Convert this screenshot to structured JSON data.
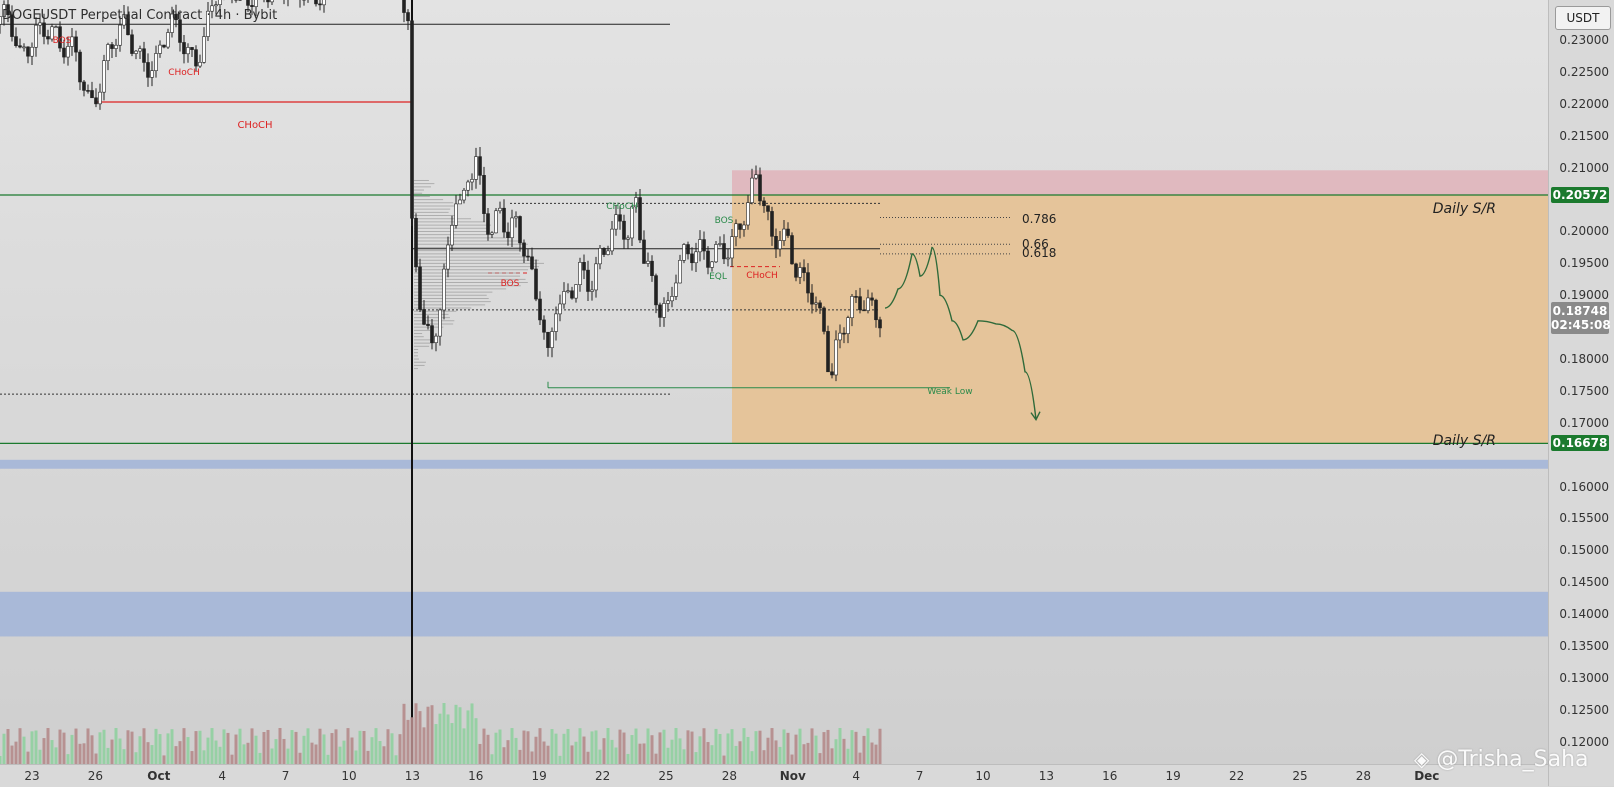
{
  "header": {
    "title": "DOGEUSDT Perpetual Contract · 4h · Bybit",
    "currency": "USDT"
  },
  "price_axis": {
    "ticks": [
      "0.23000",
      "0.22500",
      "0.22000",
      "0.21500",
      "0.21000",
      "0.20000",
      "0.19500",
      "0.19000",
      "0.18000",
      "0.17500",
      "0.17000",
      "0.16000",
      "0.15500",
      "0.15000",
      "0.14500",
      "0.14000",
      "0.13500",
      "0.13000",
      "0.12500",
      "0.12000"
    ],
    "upper_sr_price": "0.20572",
    "lower_sr_price": "0.16678",
    "current_price": "0.18748",
    "countdown": "02:45:08"
  },
  "time_axis": {
    "labels": [
      "23",
      "26",
      "Oct",
      "4",
      "7",
      "10",
      "13",
      "16",
      "19",
      "22",
      "25",
      "28",
      "Nov",
      "4",
      "7",
      "10",
      "13",
      "16",
      "19",
      "22",
      "25",
      "28",
      "Dec"
    ]
  },
  "annotations": {
    "choch": "CHoCH",
    "daily_sr_upper": "Daily S/R",
    "daily_sr_lower": "Daily S/R",
    "fib_786": "0.786",
    "fib_66": "0.66",
    "fib_618": "0.618",
    "weak_low": "Weak Low",
    "eql": "EQL",
    "bos": "BOS",
    "choch_small": "CHoCH",
    "bos_left": "BOS",
    "choch_left": "CHoCH",
    "bos_mid": "BOS",
    "choch_right": "CHoCH"
  },
  "watermark": "@Trisha_Saha",
  "colors": {
    "supply_zone": "#e0b9bf",
    "premium_zone": "#e5c49a",
    "demand_band": "#a9b9d8",
    "sr_line": "#1b7a2e",
    "bull": "#ffffff",
    "bear": "#222222",
    "vol_up": "#8fcf9f",
    "vol_down": "#b48a8a",
    "projection": "#2f6a3a"
  },
  "chart_data": {
    "type": "candlestick",
    "symbol": "DOGEUSDT",
    "timeframe": "4h",
    "y_range": [
      0.1165,
      0.2363
    ],
    "levels": {
      "upper_daily_sr": 0.20572,
      "lower_daily_sr": 0.16678,
      "current": 0.18748,
      "choch": 0.2203,
      "weak_low": 0.1755,
      "equal_highs": 0.2044,
      "mid_line": 0.1973,
      "fib_786": 0.2022,
      "fib_66": 0.198,
      "fib_618": 0.1965
    },
    "zones": [
      {
        "name": "supply",
        "from": 0.2057,
        "to": 0.2096
      },
      {
        "name": "premium",
        "from": 0.16678,
        "to": 0.20572
      },
      {
        "name": "demand_thin",
        "from": 0.1628,
        "to": 0.1642
      },
      {
        "name": "demand",
        "from": 0.1365,
        "to": 0.1435
      }
    ],
    "price_path": [
      [
        0,
        0.2325
      ],
      [
        10,
        0.233
      ],
      [
        20,
        0.228
      ],
      [
        35,
        0.232
      ],
      [
        50,
        0.231
      ],
      [
        60,
        0.228
      ],
      [
        75,
        0.229
      ],
      [
        90,
        0.2205
      ],
      [
        100,
        0.223
      ],
      [
        110,
        0.228
      ],
      [
        125,
        0.232
      ],
      [
        140,
        0.228
      ],
      [
        155,
        0.226
      ],
      [
        170,
        0.232
      ],
      [
        185,
        0.229
      ],
      [
        195,
        0.227
      ],
      [
        205,
        0.232
      ],
      [
        215,
        0.237
      ],
      [
        225,
        0.238
      ],
      [
        240,
        0.236
      ],
      [
        260,
        0.239
      ],
      [
        280,
        0.237
      ],
      [
        300,
        0.238
      ],
      [
        320,
        0.238
      ],
      [
        340,
        0.24
      ],
      [
        360,
        0.241
      ],
      [
        380,
        0.24
      ],
      [
        400,
        0.238
      ],
      [
        408,
        0.232
      ],
      [
        412,
        0.2
      ],
      [
        418,
        0.192
      ],
      [
        425,
        0.186
      ],
      [
        432,
        0.183
      ],
      [
        440,
        0.189
      ],
      [
        448,
        0.196
      ],
      [
        455,
        0.205
      ],
      [
        462,
        0.202
      ],
      [
        468,
        0.208
      ],
      [
        476,
        0.212
      ],
      [
        484,
        0.204
      ],
      [
        492,
        0.201
      ],
      [
        500,
        0.203
      ],
      [
        508,
        0.199
      ],
      [
        516,
        0.2
      ],
      [
        524,
        0.197
      ],
      [
        532,
        0.193
      ],
      [
        540,
        0.189
      ],
      [
        548,
        0.181
      ],
      [
        556,
        0.189
      ],
      [
        564,
        0.188
      ],
      [
        572,
        0.19
      ],
      [
        580,
        0.193
      ],
      [
        590,
        0.192
      ],
      [
        600,
        0.197
      ],
      [
        610,
        0.2
      ],
      [
        620,
        0.201
      ],
      [
        628,
        0.198
      ],
      [
        636,
        0.204
      ],
      [
        644,
        0.196
      ],
      [
        652,
        0.193
      ],
      [
        660,
        0.189
      ],
      [
        668,
        0.188
      ],
      [
        676,
        0.193
      ],
      [
        684,
        0.195
      ],
      [
        692,
        0.196
      ],
      [
        700,
        0.197
      ],
      [
        710,
        0.197
      ],
      [
        720,
        0.198
      ],
      [
        730,
        0.197
      ],
      [
        740,
        0.2
      ],
      [
        748,
        0.203
      ],
      [
        756,
        0.209
      ],
      [
        764,
        0.205
      ],
      [
        772,
        0.2
      ],
      [
        780,
        0.2
      ],
      [
        788,
        0.198
      ],
      [
        796,
        0.193
      ],
      [
        804,
        0.191
      ],
      [
        812,
        0.19
      ],
      [
        820,
        0.187
      ],
      [
        826,
        0.185
      ],
      [
        830,
        0.177
      ],
      [
        836,
        0.182
      ],
      [
        842,
        0.185
      ],
      [
        850,
        0.187
      ],
      [
        860,
        0.188
      ],
      [
        870,
        0.188
      ],
      [
        880,
        0.1875
      ]
    ],
    "projection_path": [
      [
        885,
        0.188
      ],
      [
        898,
        0.191
      ],
      [
        912,
        0.1965
      ],
      [
        920,
        0.193
      ],
      [
        932,
        0.1975
      ],
      [
        940,
        0.19
      ],
      [
        952,
        0.186
      ],
      [
        963,
        0.183
      ],
      [
        978,
        0.186
      ],
      [
        996,
        0.1855
      ],
      [
        1012,
        0.1845
      ],
      [
        1025,
        0.178
      ],
      [
        1036,
        0.1705
      ]
    ],
    "volume_profile": true
  }
}
